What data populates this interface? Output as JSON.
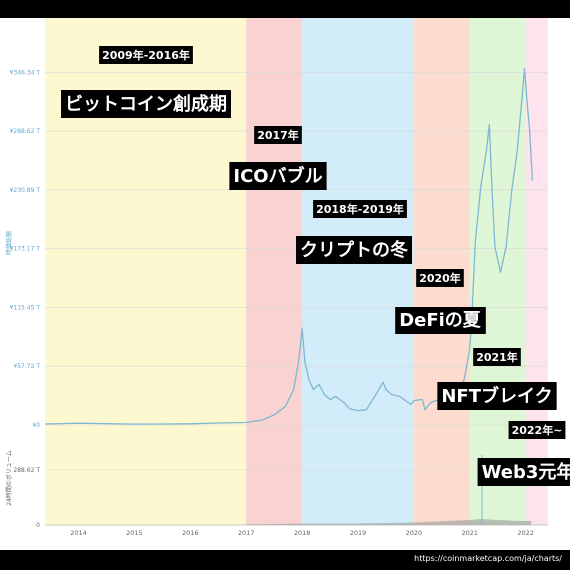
{
  "chart_data": {
    "type": "area",
    "ylabel": "時価総額",
    "volume_label": "24時間のボリューム",
    "y_ticks": [
      "¥0",
      "¥57.72 T",
      "¥115.45 T",
      "¥173.17 T",
      "¥230.89 T",
      "¥288.62 T",
      "¥346.34 T"
    ],
    "y_tick_values": [
      0,
      57.72,
      115.45,
      173.17,
      230.89,
      288.62,
      346.34
    ],
    "ylim": [
      0,
      380
    ],
    "volume_ticks": [
      "0",
      "288.62 T"
    ],
    "x_ticks": [
      "2014",
      "2015",
      "2016",
      "2017",
      "2018",
      "2019",
      "2020",
      "2021",
      "2022"
    ],
    "x_range": [
      2013.4,
      2022.4
    ],
    "series": [
      {
        "values": [
          [
            2013.4,
            1.0
          ],
          [
            2013.8,
            1.5
          ],
          [
            2014.0,
            1.8
          ],
          [
            2014.5,
            1.3
          ],
          [
            2015.0,
            0.9
          ],
          [
            2015.5,
            1.0
          ],
          [
            2016.0,
            1.2
          ],
          [
            2016.5,
            2.0
          ],
          [
            2017.0,
            2.5
          ],
          [
            2017.3,
            5
          ],
          [
            2017.5,
            10
          ],
          [
            2017.7,
            18
          ],
          [
            2017.85,
            35
          ],
          [
            2017.93,
            60
          ],
          [
            2017.97,
            78
          ],
          [
            2018.0,
            95
          ],
          [
            2018.05,
            62
          ],
          [
            2018.12,
            45
          ],
          [
            2018.2,
            35
          ],
          [
            2018.3,
            40
          ],
          [
            2018.4,
            30
          ],
          [
            2018.5,
            25
          ],
          [
            2018.6,
            28
          ],
          [
            2018.75,
            22
          ],
          [
            2018.85,
            16
          ],
          [
            2019.0,
            14
          ],
          [
            2019.15,
            15
          ],
          [
            2019.3,
            28
          ],
          [
            2019.45,
            42
          ],
          [
            2019.5,
            35
          ],
          [
            2019.6,
            30
          ],
          [
            2019.75,
            28
          ],
          [
            2019.85,
            24
          ],
          [
            2019.95,
            20
          ],
          [
            2020.0,
            24
          ],
          [
            2020.15,
            25
          ],
          [
            2020.2,
            15
          ],
          [
            2020.3,
            22
          ],
          [
            2020.5,
            26
          ],
          [
            2020.65,
            30
          ],
          [
            2020.8,
            32
          ],
          [
            2020.9,
            45
          ],
          [
            2021.0,
            75
          ],
          [
            2021.05,
            120
          ],
          [
            2021.1,
            180
          ],
          [
            2021.2,
            235
          ],
          [
            2021.3,
            270
          ],
          [
            2021.35,
            295
          ],
          [
            2021.4,
            230
          ],
          [
            2021.45,
            175
          ],
          [
            2021.55,
            150
          ],
          [
            2021.65,
            175
          ],
          [
            2021.75,
            230
          ],
          [
            2021.85,
            270
          ],
          [
            2021.9,
            300
          ],
          [
            2021.95,
            330
          ],
          [
            2021.98,
            350
          ],
          [
            2022.02,
            320
          ],
          [
            2022.07,
            290
          ],
          [
            2022.12,
            240
          ]
        ]
      }
    ],
    "era_bands": [
      {
        "from": 2013.4,
        "to": 2017.0,
        "color": "#fdf8d0"
      },
      {
        "from": 2017.0,
        "to": 2018.0,
        "color": "#f8d3d2"
      },
      {
        "from": 2018.0,
        "to": 2020.0,
        "color": "#d3ecf9"
      },
      {
        "from": 2020.0,
        "to": 2021.0,
        "color": "#fbdccf"
      },
      {
        "from": 2021.0,
        "to": 2022.0,
        "color": "#def5d6"
      },
      {
        "from": 2022.0,
        "to": 2022.4,
        "color": "#fde3ee"
      }
    ],
    "annotations": [
      {
        "year": "2009年-2016年",
        "title": "ビットコイン創成期"
      },
      {
        "year": "2017年",
        "title": "ICOバブル"
      },
      {
        "year": "2018年-2019年",
        "title": "クリプトの冬"
      },
      {
        "year": "2020年",
        "title": "DeFiの夏"
      },
      {
        "year": "2021年",
        "title": "NFTブレイク"
      },
      {
        "year": "2022年~",
        "title": "Web3元年"
      }
    ]
  },
  "source_url": "https://coinmarketcap.com/ja/charts/",
  "colors": {
    "line": "#7fb7d2",
    "annotation_bg": "#000000",
    "annotation_text": "#ffffff",
    "axis_text": "#5fa8cc"
  }
}
